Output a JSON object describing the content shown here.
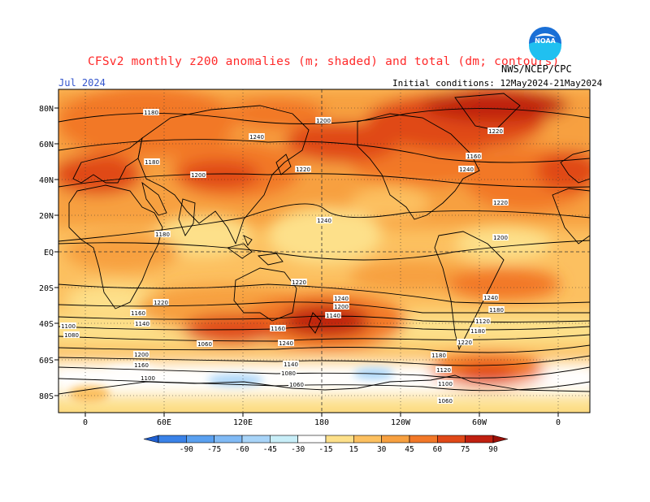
{
  "header": {
    "title": "CFSv2 monthly z200 anomalies (m; shaded) and total (dm; contours)",
    "month": "Jul 2024",
    "agency": "NWS/NCEP/CPC",
    "initial_conditions": "Initial conditions: 12May2024-21May2024",
    "logo_text": "NOAA"
  },
  "axes": {
    "lat_labels": [
      "80N",
      "60N",
      "40N",
      "20N",
      "EQ",
      "20S",
      "40S",
      "60S",
      "80S"
    ],
    "lon_labels": [
      "0",
      "60E",
      "120E",
      "180",
      "120W",
      "60W",
      "0"
    ]
  },
  "colorbar": {
    "levels": [
      "-90",
      "-75",
      "-60",
      "-45",
      "-30",
      "-15",
      "15",
      "30",
      "45",
      "60",
      "75",
      "90"
    ],
    "colors": [
      "#1f5fd0",
      "#3a82e8",
      "#5aa0f0",
      "#80baf5",
      "#a8d4f8",
      "#c8eef8",
      "#ffffff",
      "#fde08a",
      "#fcc060",
      "#f7a040",
      "#f27828",
      "#e04818",
      "#c02010",
      "#9a1008"
    ]
  },
  "contour_labels": [
    "1180",
    "1200",
    "1220",
    "1240",
    "1160",
    "1180",
    "1200",
    "1220",
    "1240",
    "1220",
    "1240",
    "1180",
    "1200",
    "1220",
    "1240",
    "1240",
    "1220",
    "1200",
    "1180",
    "1160",
    "1140",
    "1120",
    "1140",
    "1160",
    "1180",
    "1200",
    "1220",
    "1240",
    "1220",
    "1200",
    "1180",
    "1160",
    "1140",
    "1120",
    "1100",
    "1080",
    "1060",
    "1100",
    "1080",
    "1060",
    "1100",
    "1080",
    "1060",
    "1240",
    "1220",
    "1200",
    "1180",
    "1160",
    "1140",
    "1120",
    "1100",
    "1080",
    "1060"
  ],
  "map": {
    "contour_interval_dm": 20,
    "shading_units": "m",
    "projection": "cylindrical equidistant"
  }
}
